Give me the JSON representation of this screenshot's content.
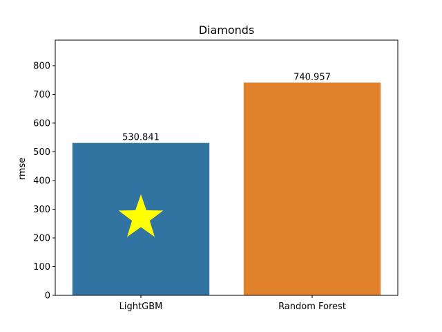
{
  "chart_data": {
    "type": "bar",
    "title": "Diamonds",
    "xlabel": "",
    "ylabel": "rmse",
    "categories": [
      "LightGBM",
      "Random Forest"
    ],
    "values": [
      530.841,
      740.957
    ],
    "value_labels": [
      "530.841",
      "740.957"
    ],
    "colors": [
      "#3274a1",
      "#e1812c"
    ],
    "ylim": [
      0,
      889
    ],
    "yticks": [
      0,
      100,
      200,
      300,
      400,
      500,
      600,
      700,
      800
    ],
    "grid": false,
    "marker": {
      "shape": "star",
      "color": "#ffff00",
      "category": "LightGBM",
      "y": 270
    }
  }
}
